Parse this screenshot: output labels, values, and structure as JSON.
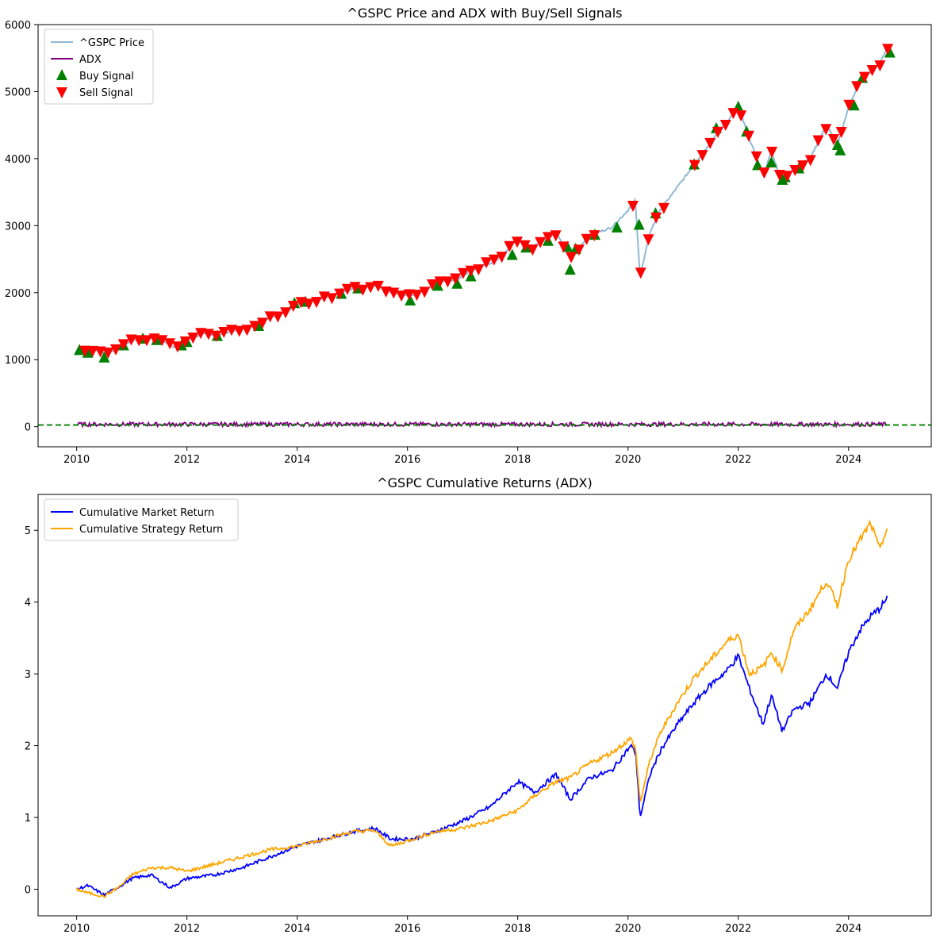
{
  "colors": {
    "price": "#8fb9d6",
    "adx": "#800080",
    "buy": "#008000",
    "sell": "#ff0000",
    "threshold": "#008000",
    "market": "#0000ff",
    "strategy": "#ffa500"
  },
  "chart_data": [
    {
      "type": "line",
      "title": "^GSPC Price and ADX with Buy/Sell Signals",
      "xlabel": "",
      "ylabel": "",
      "xlim": [
        2009.3,
        2025.5
      ],
      "ylim": [
        -300,
        6000
      ],
      "x_ticks": [
        2010,
        2012,
        2014,
        2016,
        2018,
        2020,
        2022,
        2024
      ],
      "x_tick_labels": [
        "2010",
        "2012",
        "2014",
        "2016",
        "2018",
        "2020",
        "2022",
        "2024"
      ],
      "y_ticks": [
        0,
        1000,
        2000,
        3000,
        4000,
        5000,
        6000
      ],
      "y_tick_labels": [
        "0",
        "1000",
        "2000",
        "3000",
        "4000",
        "5000",
        "6000"
      ],
      "grid": false,
      "legend_position": "top-left",
      "threshold_line": {
        "y": 25,
        "style": "dashed"
      },
      "series": [
        {
          "name": "^GSPC Price",
          "kind": "line",
          "x": [
            2010.0,
            2010.3,
            2010.5,
            2010.8,
            2011.0,
            2011.3,
            2011.6,
            2011.8,
            2012.0,
            2012.3,
            2012.5,
            2012.8,
            2013.0,
            2013.4,
            2013.8,
            2014.0,
            2014.4,
            2014.8,
            2015.0,
            2015.4,
            2015.7,
            2016.0,
            2016.2,
            2016.6,
            2016.9,
            2017.2,
            2017.6,
            2018.0,
            2018.2,
            2018.7,
            2018.95,
            2019.3,
            2019.7,
            2020.0,
            2020.13,
            2020.22,
            2020.4,
            2020.6,
            2020.9,
            2021.2,
            2021.5,
            2021.8,
            2022.0,
            2022.2,
            2022.45,
            2022.6,
            2022.8,
            2023.0,
            2023.3,
            2023.6,
            2023.8,
            2024.0,
            2024.2,
            2024.4,
            2024.55,
            2024.7
          ],
          "y": [
            1120,
            1170,
            1080,
            1180,
            1280,
            1330,
            1250,
            1180,
            1290,
            1400,
            1350,
            1430,
            1460,
            1590,
            1700,
            1830,
            1900,
            2000,
            2060,
            2110,
            2000,
            1950,
            2000,
            2170,
            2200,
            2360,
            2470,
            2800,
            2650,
            2900,
            2500,
            2860,
            2970,
            3230,
            3380,
            2240,
            2900,
            3250,
            3580,
            3910,
            4250,
            4550,
            4780,
            4300,
            3750,
            4100,
            3650,
            3850,
            4000,
            4500,
            4200,
            4770,
            5150,
            5300,
            5400,
            5650
          ]
        },
        {
          "name": "ADX",
          "kind": "line",
          "x": [
            2010.0,
            2010.5,
            2011.0,
            2011.5,
            2012.0,
            2012.5,
            2013.0,
            2013.5,
            2014.0,
            2014.5,
            2015.0,
            2015.5,
            2016.0,
            2016.5,
            2017.0,
            2017.5,
            2018.0,
            2018.5,
            2019.0,
            2019.5,
            2020.0,
            2020.5,
            2021.0,
            2021.5,
            2022.0,
            2022.5,
            2023.0,
            2023.5,
            2024.0,
            2024.5,
            2024.7
          ],
          "y": [
            40,
            30,
            55,
            35,
            45,
            25,
            50,
            30,
            40,
            55,
            30,
            45,
            35,
            60,
            30,
            40,
            55,
            30,
            45,
            35,
            60,
            40,
            50,
            30,
            45,
            60,
            35,
            40,
            50,
            45,
            40
          ]
        },
        {
          "name": "Buy Signal",
          "kind": "scatter",
          "marker": "triangle-up",
          "x": [
            2010.05,
            2010.2,
            2010.5,
            2010.85,
            2011.2,
            2011.45,
            2011.9,
            2012.0,
            2012.55,
            2013.3,
            2013.95,
            2014.15,
            2014.8,
            2015.1,
            2016.05,
            2016.55,
            2016.9,
            2017.15,
            2017.9,
            2018.15,
            2018.55,
            2018.9,
            2018.95,
            2019.05,
            2019.4,
            2019.8,
            2020.2,
            2020.5,
            2021.2,
            2021.6,
            2022.0,
            2022.15,
            2022.35,
            2022.6,
            2022.8,
            2022.85,
            2023.1,
            2023.8,
            2023.85,
            2024.1,
            2024.25,
            2024.75
          ],
          "y": [
            1140,
            1100,
            1030,
            1210,
            1310,
            1290,
            1210,
            1260,
            1350,
            1500,
            1840,
            1860,
            1980,
            2060,
            1880,
            2100,
            2130,
            2240,
            2560,
            2670,
            2770,
            2680,
            2340,
            2650,
            2860,
            2970,
            3010,
            3180,
            3910,
            4450,
            4770,
            4400,
            3900,
            3940,
            3680,
            3720,
            3850,
            4200,
            4120,
            4790,
            5200,
            5580
          ]
        }
      ]
    },
    {
      "type": "line",
      "title": "^GSPC Cumulative Returns (ADX)",
      "xlabel": "",
      "ylabel": "",
      "xlim": [
        2009.3,
        2025.5
      ],
      "ylim": [
        -0.37,
        5.5
      ],
      "x_ticks": [
        2010,
        2012,
        2014,
        2016,
        2018,
        2020,
        2022,
        2024
      ],
      "x_tick_labels": [
        "2010",
        "2012",
        "2014",
        "2016",
        "2018",
        "2020",
        "2022",
        "2024"
      ],
      "y_ticks": [
        0,
        1,
        2,
        3,
        4,
        5
      ],
      "y_tick_labels": [
        "0",
        "1",
        "2",
        "3",
        "4",
        "5"
      ],
      "grid": false,
      "legend_position": "top-left",
      "series": [
        {
          "name": "Cumulative Market Return",
          "kind": "line",
          "x": [
            2010.0,
            2010.2,
            2010.5,
            2010.8,
            2011.0,
            2011.35,
            2011.7,
            2012.0,
            2012.5,
            2013.0,
            2013.5,
            2014.0,
            2014.5,
            2015.0,
            2015.4,
            2015.7,
            2016.1,
            2016.5,
            2017.0,
            2017.5,
            2018.0,
            2018.3,
            2018.7,
            2018.95,
            2019.3,
            2019.7,
            2020.05,
            2020.14,
            2020.22,
            2020.4,
            2020.6,
            2020.9,
            2021.2,
            2021.5,
            2021.8,
            2022.0,
            2022.2,
            2022.45,
            2022.6,
            2022.8,
            2023.0,
            2023.3,
            2023.6,
            2023.8,
            2024.0,
            2024.2,
            2024.4,
            2024.55,
            2024.7
          ],
          "y": [
            0.0,
            0.05,
            -0.08,
            0.05,
            0.15,
            0.2,
            0.02,
            0.15,
            0.2,
            0.3,
            0.45,
            0.6,
            0.7,
            0.8,
            0.85,
            0.7,
            0.7,
            0.8,
            0.95,
            1.15,
            1.5,
            1.35,
            1.6,
            1.25,
            1.55,
            1.65,
            2.0,
            1.9,
            1.0,
            1.6,
            1.95,
            2.3,
            2.6,
            2.85,
            3.05,
            3.25,
            2.8,
            2.3,
            2.7,
            2.2,
            2.5,
            2.6,
            3.0,
            2.8,
            3.3,
            3.6,
            3.8,
            3.9,
            4.05
          ]
        },
        {
          "name": "Cumulative Strategy Return",
          "kind": "line",
          "x": [
            2010.0,
            2010.2,
            2010.5,
            2010.8,
            2011.0,
            2011.35,
            2011.7,
            2012.0,
            2012.5,
            2013.0,
            2013.5,
            2014.0,
            2014.5,
            2015.0,
            2015.4,
            2015.7,
            2016.1,
            2016.5,
            2017.0,
            2017.5,
            2018.0,
            2018.3,
            2018.7,
            2018.95,
            2019.3,
            2019.7,
            2020.05,
            2020.14,
            2020.22,
            2020.4,
            2020.6,
            2020.9,
            2021.2,
            2021.5,
            2021.8,
            2022.0,
            2022.2,
            2022.45,
            2022.6,
            2022.8,
            2023.0,
            2023.3,
            2023.6,
            2023.8,
            2024.0,
            2024.2,
            2024.4,
            2024.55,
            2024.7
          ],
          "y": [
            0.0,
            -0.05,
            -0.1,
            0.05,
            0.2,
            0.3,
            0.3,
            0.25,
            0.35,
            0.45,
            0.55,
            0.6,
            0.7,
            0.8,
            0.82,
            0.6,
            0.7,
            0.8,
            0.85,
            0.95,
            1.1,
            1.3,
            1.5,
            1.55,
            1.75,
            1.9,
            2.1,
            1.95,
            1.2,
            1.8,
            2.2,
            2.6,
            2.95,
            3.2,
            3.45,
            3.55,
            3.0,
            3.1,
            3.3,
            3.05,
            3.6,
            3.9,
            4.3,
            3.95,
            4.6,
            4.85,
            5.1,
            4.75,
            5.0
          ]
        }
      ]
    }
  ]
}
